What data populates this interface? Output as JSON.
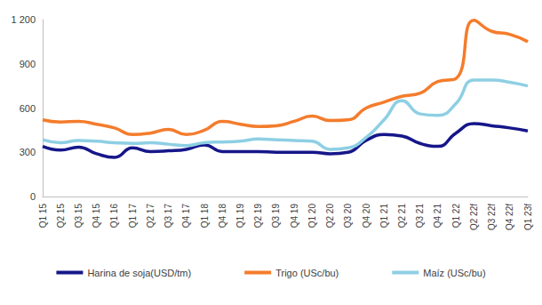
{
  "chart_data": {
    "type": "line",
    "categories": [
      "Q1 15",
      "Q2 15",
      "Q3 15",
      "Q4 15",
      "Q1 16",
      "Q1 17",
      "Q2 17",
      "Q3 17",
      "Q4 17",
      "Q1 18",
      "Q4 18",
      "Q1 19",
      "Q2 19",
      "Q3 19",
      "Q4 19",
      "Q1 20",
      "Q2 20",
      "Q3 20",
      "Q4 20",
      "Q1 21",
      "Q2 21",
      "Q3 21",
      "Q4 21",
      "Q1 22",
      "Q2 22f",
      "Q3 22f",
      "Q4 22f",
      "Q1 23f"
    ],
    "series": [
      {
        "name": "Harina de soja(USD/tm)",
        "color": "#16168a",
        "values": [
          340,
          315,
          335,
          290,
          265,
          330,
          305,
          310,
          320,
          350,
          305,
          305,
          305,
          300,
          300,
          300,
          290,
          300,
          380,
          420,
          410,
          360,
          340,
          430,
          495,
          480,
          465,
          445
        ]
      },
      {
        "name": "Trigo (USc/bu)",
        "color": "#f47c2c",
        "values": [
          520,
          505,
          510,
          490,
          465,
          420,
          430,
          455,
          420,
          450,
          510,
          490,
          475,
          480,
          510,
          545,
          515,
          520,
          600,
          640,
          680,
          700,
          780,
          800,
          1195,
          1120,
          1100,
          1050
        ]
      },
      {
        "name": "Maíz (USc/bu)",
        "color": "#8ecfe4",
        "values": [
          385,
          365,
          380,
          375,
          365,
          360,
          365,
          355,
          345,
          365,
          370,
          375,
          390,
          385,
          380,
          375,
          320,
          330,
          400,
          520,
          650,
          560,
          550,
          630,
          790,
          790,
          775,
          750
        ]
      }
    ],
    "ylim": [
      0,
      1200
    ],
    "yticks": [
      0,
      300,
      600,
      900,
      {
        "value": 1200,
        "label": "1 200"
      }
    ],
    "grid": false,
    "legend": "bottom"
  }
}
